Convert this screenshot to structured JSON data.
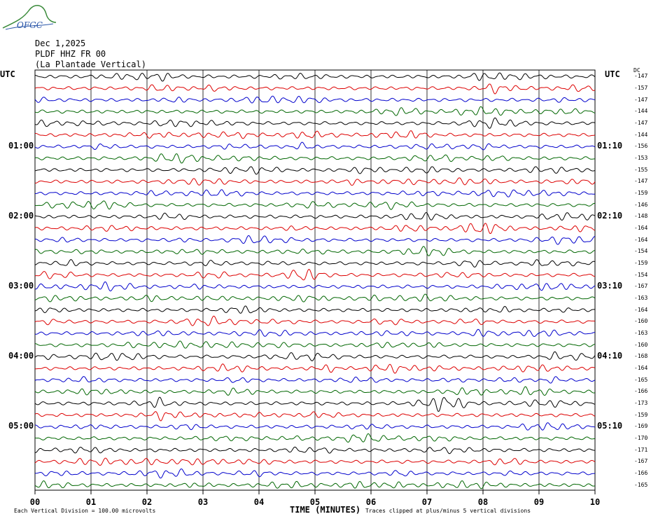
{
  "header": {
    "date": "Dec 1,2025",
    "station": "PLDF HHZ FR 00",
    "location": "(La Plantade Vertical)",
    "logo_text": "OFGC"
  },
  "utc_left": "UTC",
  "utc_right": "UTC",
  "dc_label": "DC",
  "footer": {
    "left": "Each Vertical Division =  100.00 microvolts",
    "right": "Traces clipped at plus/minus 5 vertical divisions",
    "xlabel": "TIME (MINUTES)"
  },
  "chart_data": {
    "type": "line",
    "x_ticks": [
      "00",
      "01",
      "02",
      "03",
      "04",
      "05",
      "06",
      "07",
      "08",
      "09",
      "10"
    ],
    "xlim": [
      0,
      10
    ],
    "left_time_labels": [
      {
        "row": 6,
        "text": "01:00"
      },
      {
        "row": 12,
        "text": "02:00"
      },
      {
        "row": 18,
        "text": "03:00"
      },
      {
        "row": 24,
        "text": "04:00"
      },
      {
        "row": 30,
        "text": "05:00"
      }
    ],
    "right_time_labels": [
      {
        "row": 6,
        "text": "01:10"
      },
      {
        "row": 12,
        "text": "02:10"
      },
      {
        "row": 18,
        "text": "03:10"
      },
      {
        "row": 24,
        "text": "04:10"
      },
      {
        "row": 30,
        "text": "05:10"
      }
    ],
    "trace_colors": [
      "#000000",
      "#dd0000",
      "#0000cc",
      "#006600"
    ],
    "dc_offsets": [
      -147,
      -157,
      -147,
      -144,
      -147,
      -144,
      -156,
      -153,
      -155,
      -147,
      -159,
      -146,
      -148,
      -164,
      -164,
      -154,
      -159,
      -154,
      -167,
      -163,
      -164,
      -160,
      -163,
      -160,
      -168,
      -164,
      -165,
      -166,
      -173,
      -159,
      -169,
      -170,
      -171,
      -167,
      -166,
      -165
    ],
    "row_count": 36,
    "vertical_division_microvolts": 100.0
  }
}
